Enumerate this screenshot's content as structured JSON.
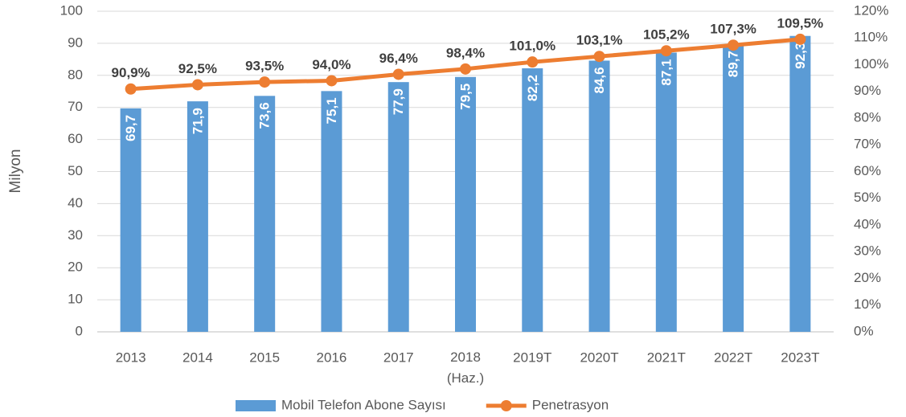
{
  "chart_data": {
    "type": "bar",
    "ylabel": "Milyon",
    "categories": [
      "2013",
      "2014",
      "2015",
      "2016",
      "2017",
      "2018\n(Haz.)",
      "2019T",
      "2020T",
      "2021T",
      "2022T",
      "2023T"
    ],
    "series": [
      {
        "name": "Mobil Telefon Abone Sayısı",
        "color": "#5b9bd5",
        "type": "bar",
        "values": [
          69.7,
          71.9,
          73.6,
          75.1,
          77.9,
          79.5,
          82.2,
          84.6,
          87.1,
          89.7,
          92.3
        ],
        "value_labels": [
          "69,7",
          "71,9",
          "73,6",
          "75,1",
          "77,9",
          "79,5",
          "82,2",
          "84,6",
          "87,1",
          "89,7",
          "92,3"
        ]
      },
      {
        "name": "Penetrasyon",
        "color": "#ed7d31",
        "type": "line",
        "axis": "y2",
        "values": [
          90.9,
          92.5,
          93.5,
          94.0,
          96.4,
          98.4,
          101.0,
          103.1,
          105.2,
          107.3,
          109.5
        ],
        "value_labels": [
          "90,9%",
          "92,5%",
          "93,5%",
          "94,0%",
          "96,4%",
          "98,4%",
          "101,0%",
          "103,1%",
          "105,2%",
          "107,3%",
          "109,5%"
        ]
      }
    ],
    "ylim": [
      0,
      100
    ],
    "yticks": [
      0,
      10,
      20,
      30,
      40,
      50,
      60,
      70,
      80,
      90,
      100
    ],
    "y2lim": [
      0,
      120
    ],
    "y2ticks": [
      {
        "value": 0,
        "label": "0%"
      },
      {
        "value": 10,
        "label": "10%"
      },
      {
        "value": 20,
        "label": "20%"
      },
      {
        "value": 30,
        "label": "30%"
      },
      {
        "value": 40,
        "label": "40%"
      },
      {
        "value": 50,
        "label": "50%"
      },
      {
        "value": 60,
        "label": "60%"
      },
      {
        "value": 70,
        "label": "70%"
      },
      {
        "value": 80,
        "label": "80%"
      },
      {
        "value": 90,
        "label": "90%"
      },
      {
        "value": 100,
        "label": "100%"
      },
      {
        "value": 110,
        "label": "110%"
      },
      {
        "value": 120,
        "label": "120%"
      }
    ],
    "grid": true,
    "legend": "bottom"
  }
}
